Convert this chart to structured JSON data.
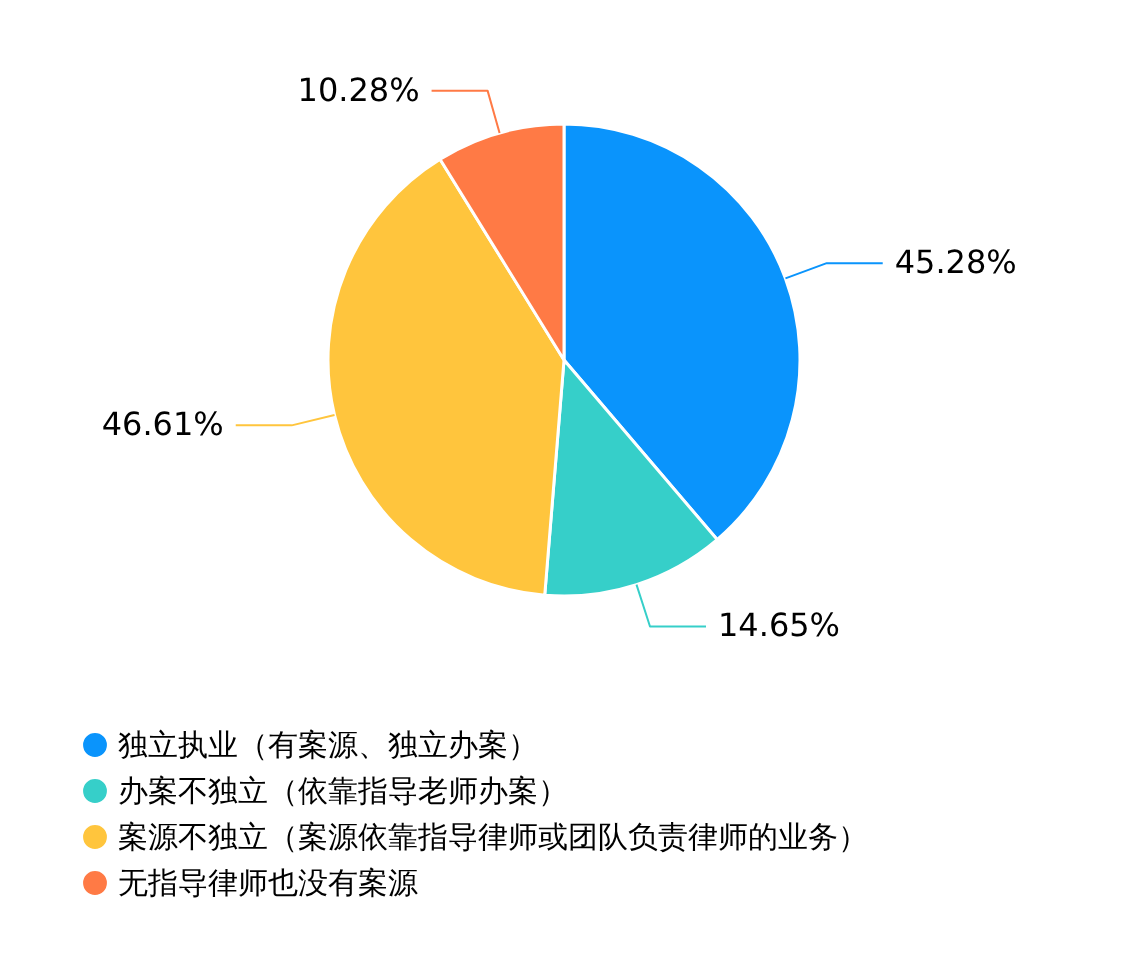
{
  "chart_data": {
    "type": "pie",
    "categories": [
      "独立执业（有案源、独立办案）",
      "办案不独立（依靠指导老师办案）",
      "案源不独立（案源依靠指导律师或团队负责律师的业务）",
      "无指导律师也没有案源"
    ],
    "values": [
      45.28,
      14.65,
      46.61,
      10.28
    ],
    "colors": [
      "#0a94fc",
      "#36cfc9",
      "#ffc53d",
      "#ff7a45"
    ],
    "value_labels": [
      "45.28%",
      "14.65%",
      "46.61%",
      "10.28%"
    ],
    "legend": "bottom left"
  }
}
